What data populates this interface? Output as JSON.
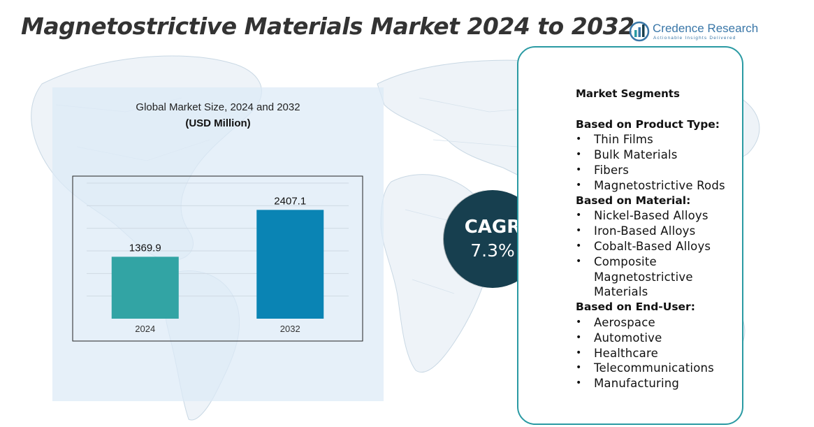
{
  "title": "Magnetostrictive Materials Market 2024 to 2032",
  "brand": {
    "name": "Credence Research",
    "tagline": "Actionable Insights Delivered"
  },
  "chart_data": {
    "type": "bar",
    "title": "Global Market Size, 2024 and 2032",
    "unit_label": "(USD Million)",
    "categories": [
      "2024",
      "2032"
    ],
    "values": [
      1369.9,
      2407.1
    ],
    "value_labels": [
      "1369.9",
      "2407.1"
    ],
    "colors": [
      "#32a4a4",
      "#0a84b4"
    ],
    "ylim": [
      0,
      3000
    ],
    "grid": true,
    "xlabel": "",
    "ylabel": ""
  },
  "cagr": {
    "label": "CAGR",
    "value": "7.3%"
  },
  "segments": {
    "heading": "Market Segments",
    "groups": [
      {
        "title": "Based on Product Type:",
        "items": [
          "Thin Films",
          "Bulk Materials",
          "Fibers",
          "Magnetostrictive Rods"
        ]
      },
      {
        "title": "Based on Material:",
        "items": [
          "Nickel-Based Alloys",
          "Iron-Based Alloys",
          "Cobalt-Based Alloys",
          "Composite Magnetostrictive Materials"
        ]
      },
      {
        "title": "Based on End-User:",
        "items": [
          "Aerospace",
          "Automotive",
          "Healthcare",
          "Telecommunications",
          "Manufacturing"
        ]
      }
    ]
  },
  "colors": {
    "title_text": "#333333",
    "brand_blue": "#3a77a8",
    "panel_border": "#2a9aa3",
    "cagr_fill": "#173f4f",
    "chart_panel_bg": "#ddeaf7"
  }
}
